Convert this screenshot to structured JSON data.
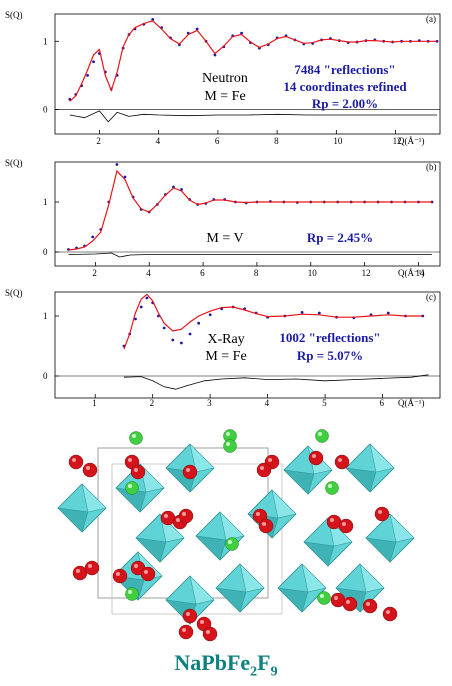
{
  "chart_data": [
    {
      "type": "line",
      "panel": "(a)",
      "ylabel": "S(Q)",
      "xlabel": "Q(Å⁻¹)",
      "x_ticks": [
        "2",
        "4",
        "6",
        "8",
        "10",
        "12"
      ],
      "y_ticks": [
        "1",
        "0"
      ],
      "xlim": [
        0.5,
        13.5
      ],
      "ylim": [
        -0.3,
        1.4
      ],
      "annotations": {
        "material_line1": "Neutron",
        "material_line2": "M = Fe",
        "stats_line1": "7484 \"reflections\"",
        "stats_line2": "14 coordinates refined",
        "stats_line3": "Rp = 2.00%"
      },
      "series": [
        {
          "role": "observed",
          "color": "#1a1aa6",
          "x": [
            1.0,
            1.2,
            1.4,
            1.6,
            1.8,
            2.0,
            2.2,
            2.4,
            2.6,
            2.8,
            3.0,
            3.2,
            3.5,
            3.8,
            4.1,
            4.4,
            4.7,
            5.0,
            5.3,
            5.6,
            5.9,
            6.2,
            6.5,
            6.8,
            7.1,
            7.4,
            7.7,
            8.0,
            8.3,
            8.6,
            8.9,
            9.2,
            9.5,
            9.8,
            10.1,
            10.4,
            10.7,
            11.0,
            11.3,
            11.6,
            11.9,
            12.2,
            12.5,
            12.8,
            13.1,
            13.4
          ],
          "y": [
            0.15,
            0.22,
            0.35,
            0.5,
            0.7,
            0.82,
            0.55,
            0.3,
            0.5,
            0.9,
            1.1,
            1.18,
            1.25,
            1.32,
            1.2,
            1.05,
            0.95,
            1.12,
            1.18,
            1.0,
            0.8,
            0.92,
            1.08,
            1.12,
            0.98,
            0.9,
            0.95,
            1.05,
            1.08,
            1.02,
            0.96,
            0.97,
            1.02,
            1.04,
            1.01,
            0.98,
            0.99,
            1.01,
            1.02,
            1.0,
            0.99,
            1.0,
            1.0,
            1.01,
            1.0,
            1.0
          ]
        },
        {
          "role": "calculated",
          "color": "#e8141a",
          "x": [
            1.0,
            1.2,
            1.4,
            1.6,
            1.8,
            2.0,
            2.2,
            2.4,
            2.6,
            2.8,
            3.0,
            3.2,
            3.5,
            3.8,
            4.1,
            4.4,
            4.7,
            5.0,
            5.3,
            5.6,
            5.9,
            6.2,
            6.5,
            6.8,
            7.1,
            7.4,
            7.7,
            8.0,
            8.3,
            8.6,
            8.9,
            9.2,
            9.5,
            9.8,
            10.1,
            10.4,
            10.7,
            11.0,
            11.3,
            11.6,
            11.9,
            12.2,
            12.5,
            12.8,
            13.1,
            13.4
          ],
          "y": [
            0.12,
            0.2,
            0.38,
            0.58,
            0.8,
            0.88,
            0.5,
            0.28,
            0.55,
            0.92,
            1.1,
            1.2,
            1.26,
            1.3,
            1.18,
            1.04,
            0.96,
            1.1,
            1.16,
            1.0,
            0.82,
            0.93,
            1.07,
            1.1,
            0.99,
            0.91,
            0.96,
            1.04,
            1.07,
            1.02,
            0.97,
            0.98,
            1.02,
            1.03,
            1.01,
            0.99,
            0.99,
            1.01,
            1.01,
            1.0,
            0.99,
            1.0,
            1.0,
            1.0,
            1.0,
            1.0
          ]
        },
        {
          "role": "difference",
          "color": "#000000",
          "x": [
            1.0,
            1.5,
            2.0,
            2.3,
            2.6,
            3.0,
            3.5,
            4.0,
            5.0,
            6.0,
            7.0,
            8.0,
            9.0,
            10.0,
            11.0,
            12.0,
            13.4
          ],
          "y": [
            -0.08,
            -0.12,
            -0.02,
            -0.18,
            -0.04,
            -0.1,
            -0.07,
            -0.08,
            -0.09,
            -0.08,
            -0.08,
            -0.07,
            -0.08,
            -0.08,
            -0.08,
            -0.08,
            -0.08
          ]
        }
      ]
    },
    {
      "type": "line",
      "panel": "(b)",
      "ylabel": "S(Q)",
      "xlabel": "Q(Å⁻¹)",
      "x_ticks": [
        "2",
        "4",
        "6",
        "8",
        "10",
        "12",
        "14"
      ],
      "y_ticks": [
        "1",
        "0"
      ],
      "xlim": [
        0.5,
        14.8
      ],
      "ylim": [
        -0.2,
        1.8
      ],
      "annotations": {
        "material_line1": "M = V",
        "stats_line1": "Rp = 2.45%"
      },
      "series": [
        {
          "role": "observed",
          "color": "#1a1aa6",
          "x": [
            1.0,
            1.3,
            1.6,
            1.9,
            2.2,
            2.5,
            2.8,
            3.1,
            3.4,
            3.7,
            4.0,
            4.3,
            4.6,
            4.9,
            5.2,
            5.5,
            5.8,
            6.1,
            6.4,
            6.8,
            7.2,
            7.6,
            8.0,
            8.5,
            9.0,
            9.5,
            10.0,
            10.5,
            11.0,
            11.5,
            12.0,
            12.5,
            13.0,
            13.5,
            14.0,
            14.5
          ],
          "y": [
            0.05,
            0.08,
            0.12,
            0.3,
            0.45,
            1.0,
            1.75,
            1.5,
            1.1,
            0.85,
            0.8,
            0.95,
            1.15,
            1.3,
            1.25,
            1.05,
            0.95,
            0.97,
            1.05,
            1.05,
            1.0,
            0.98,
            1.0,
            1.01,
            1.0,
            0.99,
            1.0,
            1.0,
            1.0,
            1.0,
            1.0,
            1.0,
            1.0,
            1.0,
            1.0,
            1.0
          ]
        },
        {
          "role": "calculated",
          "color": "#e8141a",
          "x": [
            1.0,
            1.3,
            1.6,
            1.9,
            2.2,
            2.5,
            2.8,
            3.1,
            3.4,
            3.7,
            4.0,
            4.3,
            4.6,
            4.9,
            5.2,
            5.5,
            5.8,
            6.1,
            6.4,
            6.8,
            7.2,
            7.6,
            8.0,
            8.5,
            9.0,
            9.5,
            10.0,
            10.5,
            11.0,
            11.5,
            12.0,
            12.5,
            13.0,
            13.5,
            14.0,
            14.5
          ],
          "y": [
            0.04,
            0.06,
            0.1,
            0.22,
            0.4,
            0.95,
            1.62,
            1.45,
            1.08,
            0.86,
            0.8,
            0.95,
            1.14,
            1.28,
            1.22,
            1.04,
            0.95,
            0.98,
            1.04,
            1.04,
            1.0,
            0.99,
            1.0,
            1.0,
            1.0,
            1.0,
            1.0,
            1.0,
            1.0,
            1.0,
            1.0,
            1.0,
            1.0,
            1.0,
            1.0,
            1.0
          ]
        },
        {
          "role": "difference",
          "color": "#000000",
          "x": [
            1.0,
            2.0,
            2.6,
            2.9,
            3.3,
            4.0,
            6.0,
            8.0,
            10.0,
            12.0,
            14.5
          ],
          "y": [
            -0.05,
            -0.04,
            -0.02,
            -0.1,
            -0.06,
            -0.05,
            -0.05,
            -0.05,
            -0.05,
            -0.05,
            -0.05
          ]
        }
      ]
    },
    {
      "type": "line",
      "panel": "(c)",
      "ylabel": "S(Q)",
      "xlabel": "Q(Å⁻¹)",
      "x_ticks": [
        "1",
        "2",
        "3",
        "4",
        "5",
        "6"
      ],
      "y_ticks": [
        "1",
        "0"
      ],
      "xlim": [
        0.3,
        7.0
      ],
      "ylim": [
        -0.3,
        1.4
      ],
      "annotations": {
        "material_line1": "X-Ray",
        "material_line2": "M = Fe",
        "stats_line1": "1002 \"reflections\"",
        "stats_line2": "Rp = 5.07%"
      },
      "series": [
        {
          "role": "observed",
          "color": "#1a1aa6",
          "x": [
            1.5,
            1.6,
            1.7,
            1.8,
            1.9,
            2.0,
            2.1,
            2.2,
            2.35,
            2.5,
            2.65,
            2.8,
            3.0,
            3.2,
            3.4,
            3.6,
            3.8,
            4.0,
            4.3,
            4.6,
            4.9,
            5.2,
            5.5,
            5.8,
            6.1,
            6.4,
            6.7
          ],
          "y": [
            0.5,
            0.7,
            0.95,
            1.15,
            1.3,
            1.22,
            1.0,
            0.8,
            0.6,
            0.55,
            0.7,
            0.88,
            1.02,
            1.12,
            1.15,
            1.12,
            1.05,
            0.98,
            1.0,
            1.06,
            1.05,
            0.98,
            0.97,
            1.02,
            1.05,
            1.0,
            1.0
          ]
        },
        {
          "role": "calculated",
          "color": "#e8141a",
          "x": [
            1.5,
            1.6,
            1.7,
            1.8,
            1.9,
            2.0,
            2.1,
            2.2,
            2.35,
            2.5,
            2.65,
            2.8,
            3.0,
            3.2,
            3.4,
            3.6,
            3.8,
            4.0,
            4.3,
            4.6,
            4.9,
            5.2,
            5.5,
            5.8,
            6.1,
            6.4,
            6.7
          ],
          "y": [
            0.45,
            0.7,
            1.05,
            1.28,
            1.36,
            1.25,
            1.05,
            0.88,
            0.75,
            0.78,
            0.9,
            1.0,
            1.08,
            1.14,
            1.15,
            1.1,
            1.04,
            0.99,
            1.0,
            1.03,
            1.02,
            0.98,
            0.98,
            1.0,
            1.02,
            1.0,
            1.0
          ]
        },
        {
          "role": "difference",
          "color": "#000000",
          "x": [
            1.5,
            1.8,
            2.0,
            2.2,
            2.4,
            2.6,
            2.9,
            3.2,
            3.6,
            4.0,
            4.5,
            5.0,
            5.5,
            6.0,
            6.5,
            6.8
          ],
          "y": [
            -0.02,
            -0.01,
            -0.08,
            -0.18,
            -0.22,
            -0.16,
            -0.08,
            -0.05,
            -0.03,
            -0.06,
            -0.05,
            -0.08,
            -0.06,
            -0.04,
            -0.02,
            0.02
          ]
        }
      ]
    }
  ],
  "legend_colors": {
    "observed": "#1a1aa6",
    "calculated": "#e8141a",
    "difference": "#000000"
  },
  "structure": {
    "polyhedron_color": "#5fd3d6",
    "fluorine_color": "#d4141a",
    "lead_color": "#3fcf3f"
  },
  "formula": {
    "base": "NaPbFe",
    "sub1": "2",
    "mid": "F",
    "sub2": "9"
  }
}
